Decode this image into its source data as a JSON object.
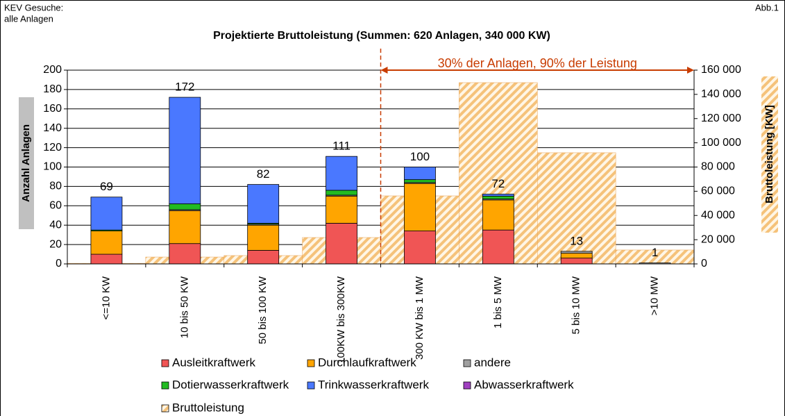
{
  "chart_data": {
    "type": "bar",
    "title": "Projektierte Bruttoleistung (Summen: 620 Anlagen, 340 000 KW)",
    "corner_note_lines": [
      "KEV Gesuche:",
      "alle Anlagen"
    ],
    "figure_label": "Abb.1",
    "annotation": "30% der Anlagen, 90% der Leistung",
    "ylabel": "Anzahl Anlagen",
    "y2label": "Bruttoleistung [KW]",
    "categories": [
      "<=10 KW",
      "10 bis 50 KW",
      "50 bis 100 KW",
      "100KW bis 300KW",
      "300 KW bis 1 MW",
      "1 bis 5 MW",
      "5 bis 10 MW",
      ">10 MW"
    ],
    "series": [
      {
        "name": "Ausleitkraftwerk",
        "color": "#f05555",
        "values": [
          10,
          21,
          14,
          42,
          34,
          35,
          6,
          0
        ]
      },
      {
        "name": "Durchlaufkraftwerk",
        "color": "#ffa500",
        "values": [
          24,
          34,
          26,
          28,
          49,
          31,
          5,
          0
        ]
      },
      {
        "name": "andere",
        "color": "#a0a0a0",
        "values": [
          0,
          1,
          1,
          1,
          1,
          1,
          2,
          1
        ]
      },
      {
        "name": "Dotierwasserkraftwerk",
        "color": "#22bb22",
        "values": [
          1,
          6,
          1,
          5,
          3,
          3,
          0,
          0
        ]
      },
      {
        "name": "Trinkwasserkraftwerk",
        "color": "#4a78ff",
        "values": [
          34,
          110,
          40,
          35,
          13,
          2,
          0,
          0
        ]
      },
      {
        "name": "Abwasserkraftwerk",
        "color": "#a040c0",
        "values": [
          0,
          0,
          0,
          0,
          0,
          0,
          0,
          0
        ]
      },
      {
        "name": "Bruttoleistung",
        "color": "#f5c27a",
        "axis": "y2",
        "values": [
          500,
          5700,
          6900,
          21800,
          56200,
          149700,
          91800,
          11500
        ]
      }
    ],
    "total_labels": [
      69,
      172,
      82,
      111,
      100,
      72,
      13,
      1
    ],
    "ylim": [
      0,
      200
    ],
    "yticks": [
      0,
      20,
      40,
      60,
      80,
      100,
      120,
      140,
      160,
      180,
      200
    ],
    "y2lim": [
      0,
      160000
    ],
    "y2ticks": [
      0,
      {
        "value": 20000,
        "label": "20 000"
      },
      {
        "value": 40000,
        "label": "40 000"
      },
      {
        "value": 60000,
        "label": "60 000"
      },
      {
        "value": 80000,
        "label": "80 000"
      },
      {
        "value": 100000,
        "label": "100 000"
      },
      {
        "value": 120000,
        "label": "120 000"
      },
      {
        "value": 140000,
        "label": "140 000"
      },
      {
        "value": 160000,
        "label": "160 000"
      }
    ],
    "grid": true
  }
}
